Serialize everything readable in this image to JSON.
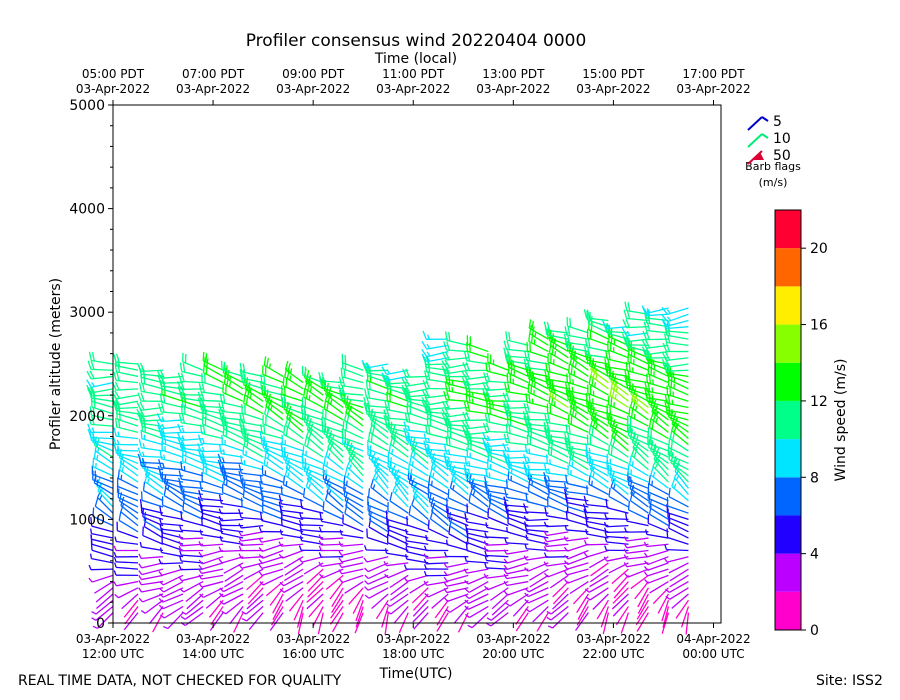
{
  "chart_data": {
    "type": "wind-barb",
    "title": "Profiler consensus wind 20220404 0000",
    "xlabel_bottom": "Time(UTC)",
    "xlabel_top": "Time (local)",
    "ylabel": "Profiler altitude (meters)",
    "xlim_hours_utc": [
      12.0,
      24.15
    ],
    "ylim": [
      0,
      5000
    ],
    "yticks": [
      0,
      1000,
      2000,
      3000,
      4000,
      5000
    ],
    "xticks_bottom": [
      {
        "h": 12,
        "l1": "03-Apr-2022",
        "l2": "12:00 UTC"
      },
      {
        "h": 14,
        "l1": "03-Apr-2022",
        "l2": "14:00 UTC"
      },
      {
        "h": 16,
        "l1": "03-Apr-2022",
        "l2": "16:00 UTC"
      },
      {
        "h": 18,
        "l1": "03-Apr-2022",
        "l2": "18:00 UTC"
      },
      {
        "h": 20,
        "l1": "03-Apr-2022",
        "l2": "20:00 UTC"
      },
      {
        "h": 22,
        "l1": "03-Apr-2022",
        "l2": "22:00 UTC"
      },
      {
        "h": 24,
        "l1": "04-Apr-2022",
        "l2": "00:00 UTC"
      }
    ],
    "xticks_top": [
      {
        "h": 12,
        "l1": "05:00 PDT",
        "l2": "03-Apr-2022"
      },
      {
        "h": 14,
        "l1": "07:00 PDT",
        "l2": "03-Apr-2022"
      },
      {
        "h": 16,
        "l1": "09:00 PDT",
        "l2": "03-Apr-2022"
      },
      {
        "h": 18,
        "l1": "11:00 PDT",
        "l2": "03-Apr-2022"
      },
      {
        "h": 20,
        "l1": "13:00 PDT",
        "l2": "03-Apr-2022"
      },
      {
        "h": 22,
        "l1": "15:00 PDT",
        "l2": "03-Apr-2022"
      },
      {
        "h": 24,
        "l1": "17:00 PDT",
        "l2": "03-Apr-2022"
      }
    ],
    "profile_times_h": [
      12.0,
      12.5,
      13.0,
      13.4,
      13.8,
      14.2,
      14.6,
      15.0,
      15.4,
      15.8,
      16.2,
      16.6,
      17.0,
      17.5,
      17.9,
      18.3,
      18.7,
      19.1,
      19.5,
      19.9,
      20.3,
      20.7,
      21.1,
      21.5,
      21.9,
      22.3,
      22.7,
      23.1,
      23.5
    ],
    "profile_top_m": [
      2550,
      2500,
      2480,
      2400,
      2450,
      2450,
      2400,
      2420,
      2400,
      2370,
      2330,
      2350,
      2480,
      2500,
      2450,
      2400,
      2750,
      2700,
      2650,
      2450,
      2700,
      2750,
      2800,
      2800,
      2950,
      2900,
      2980,
      3050,
      3050
    ],
    "speed_profile": [
      {
        "alt": 0,
        "speed": 1.5,
        "dir": 200
      },
      {
        "alt": 400,
        "speed": 2.5,
        "dir": 240
      },
      {
        "alt": 800,
        "speed": 4.5,
        "dir": 280
      },
      {
        "alt": 1200,
        "speed": 7.5,
        "dir": 300
      },
      {
        "alt": 1700,
        "speed": 10,
        "dir": 290
      },
      {
        "alt": 2100,
        "speed": 12,
        "dir": 285
      },
      {
        "alt": 2500,
        "speed": 11,
        "dir": 280
      },
      {
        "alt": 3000,
        "speed": 9,
        "dir": 275
      }
    ],
    "colorbar": {
      "label": "Wind speed (m/s)",
      "min": 0,
      "max": 22,
      "ticks": [
        0,
        4,
        8,
        12,
        16,
        20
      ],
      "bins": [
        {
          "from": 0,
          "to": 2,
          "color": "#ff00cc"
        },
        {
          "from": 2,
          "to": 4,
          "color": "#bb00ff"
        },
        {
          "from": 4,
          "to": 6,
          "color": "#2200ff"
        },
        {
          "from": 6,
          "to": 8,
          "color": "#0066ff"
        },
        {
          "from": 8,
          "to": 10,
          "color": "#00e5ff"
        },
        {
          "from": 10,
          "to": 12,
          "color": "#00ff88"
        },
        {
          "from": 12,
          "to": 14,
          "color": "#00ff00"
        },
        {
          "from": 14,
          "to": 16,
          "color": "#88ff00"
        },
        {
          "from": 16,
          "to": 18,
          "color": "#ffee00"
        },
        {
          "from": 18,
          "to": 20,
          "color": "#ff6600"
        },
        {
          "from": 20,
          "to": 22,
          "color": "#ff0033"
        }
      ]
    },
    "legend": {
      "items": [
        {
          "value": "5",
          "color": "#0000cc"
        },
        {
          "value": "10",
          "color": "#00ee77"
        },
        {
          "value": "50",
          "color": "#dd0033"
        }
      ],
      "caption_line1": "Barb flags",
      "caption_line2": "(m/s)"
    }
  },
  "footer": {
    "left": "REAL TIME DATA, NOT CHECKED FOR QUALITY",
    "right": "Site: ISS2"
  }
}
